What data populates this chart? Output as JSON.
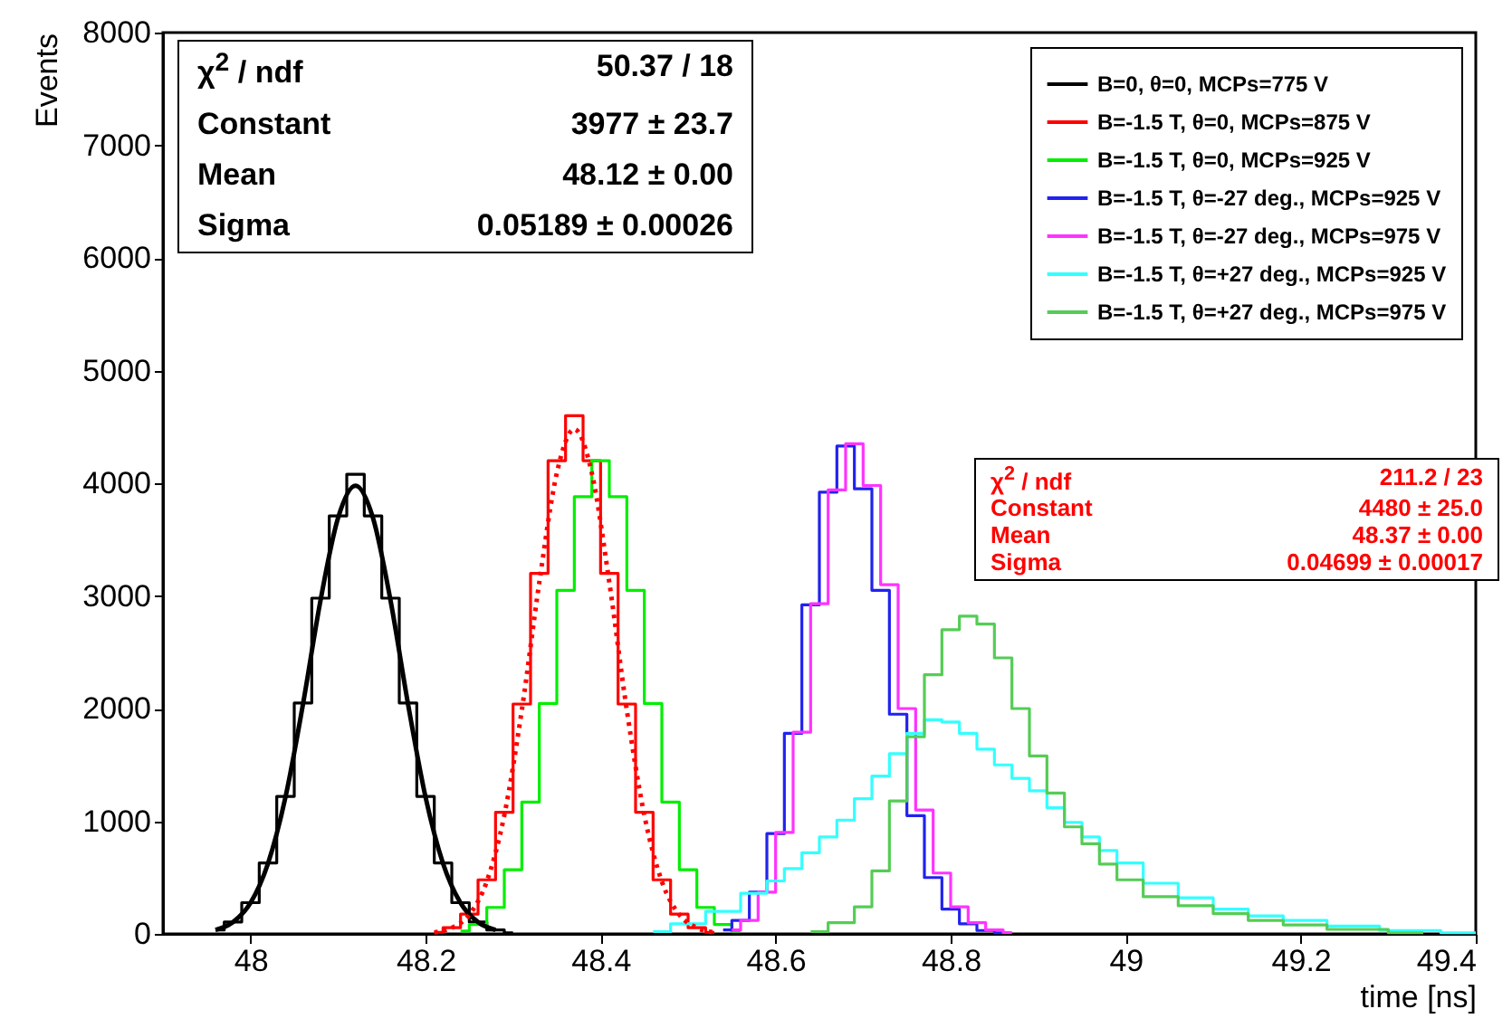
{
  "chart_data": {
    "type": "step",
    "xlabel": "time [ns]",
    "ylabel": "Events",
    "xlim": [
      47.9,
      49.4
    ],
    "xticks": [
      48,
      48.2,
      48.4,
      48.6,
      48.8,
      49,
      49.2,
      49.4
    ],
    "ylim": [
      0,
      8000
    ],
    "yticks": [
      0,
      1000,
      2000,
      3000,
      4000,
      5000,
      6000,
      7000,
      8000
    ],
    "grid": false,
    "legend": "top right",
    "marker": "none",
    "series": [
      {
        "name": "B=0, θ=0, MCPs=775 V",
        "color": "#000000",
        "x": [
          47.96,
          47.98,
          48.0,
          48.02,
          48.04,
          48.06,
          48.08,
          48.1,
          48.12,
          48.14,
          48.16,
          48.18,
          48.2,
          48.22,
          48.24,
          48.26,
          48.28,
          48.3
        ],
        "values": [
          35,
          106,
          277,
          630,
          1220,
          2050,
          2980,
          3710,
          4080,
          3710,
          2980,
          2050,
          1220,
          630,
          277,
          106,
          35,
          10
        ]
      },
      {
        "name": "B=-1.5 T, θ=0, MCPs=875 V",
        "color": "#ff0000",
        "x": [
          48.21,
          48.23,
          48.25,
          48.27,
          48.29,
          48.31,
          48.33,
          48.35,
          48.37,
          48.39,
          48.41,
          48.43,
          48.45,
          48.47,
          48.49,
          48.51,
          48.53
        ],
        "values": [
          14,
          55,
          175,
          480,
          1080,
          2040,
          3200,
          4200,
          4600,
          4200,
          3200,
          2040,
          1080,
          480,
          175,
          55,
          14
        ]
      },
      {
        "name": "B=-1.5 T, θ=0, MCPs=925 V",
        "color": "#00ee00",
        "x": [
          48.24,
          48.26,
          48.28,
          48.3,
          48.32,
          48.34,
          48.36,
          48.38,
          48.4,
          48.42,
          48.44,
          48.46,
          48.48,
          48.5,
          48.52,
          48.54,
          48.56
        ],
        "values": [
          25,
          84,
          235,
          570,
          1170,
          2045,
          3050,
          3880,
          4200,
          3880,
          3050,
          2045,
          1170,
          570,
          235,
          84,
          25
        ]
      },
      {
        "name": "B=-1.5 T, θ=-27 deg., MCPs=925 V",
        "color": "#2222ee",
        "x": [
          48.54,
          48.56,
          48.58,
          48.6,
          48.62,
          48.64,
          48.66,
          48.68,
          48.7,
          48.72,
          48.74,
          48.76,
          48.78,
          48.8,
          48.82,
          48.84,
          48.86
        ],
        "values": [
          35,
          120,
          370,
          890,
          1780,
          2920,
          3920,
          4330,
          3950,
          3050,
          1950,
          1050,
          500,
          220,
          90,
          30,
          10
        ]
      },
      {
        "name": "B=-1.5 T, θ=-27 deg., MCPs=975 V",
        "color": "#ff33ff",
        "x": [
          48.55,
          48.57,
          48.59,
          48.61,
          48.63,
          48.65,
          48.67,
          48.69,
          48.71,
          48.73,
          48.75,
          48.77,
          48.79,
          48.81,
          48.83,
          48.85,
          48.87
        ],
        "values": [
          35,
          120,
          370,
          900,
          1790,
          2930,
          3940,
          4350,
          3980,
          3100,
          2000,
          1100,
          540,
          240,
          100,
          35,
          12
        ]
      },
      {
        "name": "B=-1.5 T, θ=+27 deg., MCPs=925 V",
        "color": "#33ffff",
        "x": [
          48.46,
          48.5,
          48.54,
          48.58,
          48.6,
          48.62,
          48.64,
          48.66,
          48.68,
          48.7,
          48.72,
          48.74,
          48.76,
          48.78,
          48.8,
          48.82,
          48.84,
          48.86,
          48.88,
          48.9,
          48.92,
          48.94,
          48.96,
          48.98,
          49.0,
          49.04,
          49.08,
          49.12,
          49.16,
          49.2,
          49.26,
          49.32,
          49.4
        ],
        "values": [
          20,
          90,
          200,
          360,
          470,
          580,
          720,
          860,
          1010,
          1200,
          1400,
          1600,
          1780,
          1900,
          1880,
          1780,
          1640,
          1500,
          1380,
          1270,
          1120,
          990,
          860,
          740,
          630,
          450,
          320,
          220,
          160,
          120,
          70,
          30,
          10
        ]
      },
      {
        "name": "B=-1.5 T, θ=+27 deg., MCPs=975 V",
        "color": "#55cc55",
        "x": [
          48.64,
          48.68,
          48.7,
          48.72,
          48.74,
          48.76,
          48.78,
          48.8,
          48.82,
          48.84,
          48.86,
          48.88,
          48.9,
          48.92,
          48.94,
          48.96,
          48.98,
          49.0,
          49.04,
          49.08,
          49.12,
          49.16,
          49.2,
          49.26,
          49.34
        ],
        "values": [
          20,
          100,
          240,
          560,
          1180,
          1750,
          2300,
          2700,
          2820,
          2750,
          2450,
          2000,
          1580,
          1250,
          950,
          800,
          620,
          480,
          330,
          250,
          180,
          120,
          80,
          40,
          10
        ]
      },
      {
        "type": "line",
        "color": "#000000",
        "line_style": "solid",
        "x": [
          47.96,
          47.98,
          48.0,
          48.02,
          48.04,
          48.06,
          48.08,
          48.1,
          48.12,
          48.14,
          48.16,
          48.18,
          48.2,
          48.22,
          48.24,
          48.26,
          48.28
        ],
        "values": [
          35,
          105,
          275,
          625,
          1215,
          2040,
          2960,
          3690,
          3977,
          3690,
          2960,
          2040,
          1215,
          625,
          275,
          105,
          35
        ]
      },
      {
        "type": "line",
        "color": "#ff0000",
        "line_style": "dotted",
        "x": [
          48.21,
          48.23,
          48.25,
          48.27,
          48.29,
          48.31,
          48.33,
          48.35,
          48.37,
          48.39,
          48.41,
          48.43,
          48.45,
          48.47,
          48.49,
          48.51,
          48.53
        ],
        "values": [
          13,
          54,
          170,
          466,
          1053,
          1985,
          3120,
          4090,
          4480,
          4090,
          3120,
          1985,
          1053,
          466,
          170,
          54,
          13
        ]
      }
    ],
    "annotations": [
      "χ$^{2}$ / ndf",
      "50.37 / 18",
      "Constant",
      "3977 ± 23.7",
      "Mean",
      "48.12 ± 0.00",
      "Sigma",
      "0.05189 ± 0.00026",
      "χ$^{2}$ / ndf",
      "211.2 / 23",
      "Constant",
      "4480 ± 25.0",
      "Mean",
      "48.37 ± 0.00",
      "Sigma",
      "0.04699 ± 0.00017"
    ]
  }
}
